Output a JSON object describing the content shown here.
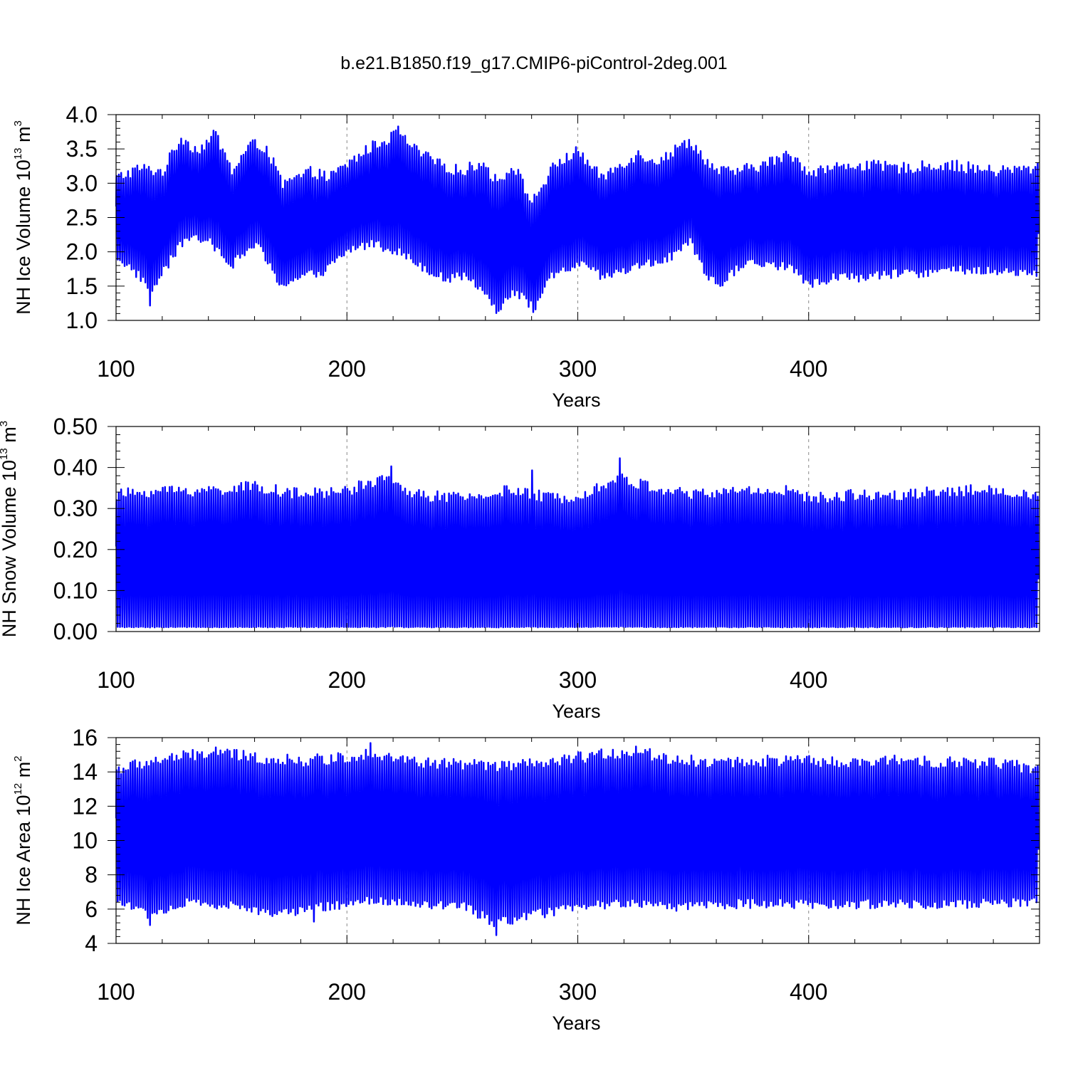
{
  "title": "b.e21.B1850.f19_g17.CMIP6-piControl-2deg.001",
  "colors": {
    "series": "#0000ff",
    "axis": "#000000",
    "grid": "#888888"
  },
  "chart_data": [
    {
      "type": "line",
      "xlabel": "Years",
      "ylabel": {
        "text": "NH Ice Volume 10",
        "sup": "13",
        "unit": " m",
        "unit_sup": "3"
      },
      "xlim": [
        100,
        500
      ],
      "ylim": [
        1.0,
        4.0
      ],
      "x_ticks": [
        100,
        200,
        300,
        400
      ],
      "x_tick_labels": [
        "100",
        "200",
        "300",
        "400"
      ],
      "y_ticks": [
        1.0,
        1.5,
        2.0,
        2.5,
        3.0,
        3.5,
        4.0
      ],
      "y_tick_labels": [
        "1.0",
        "1.5",
        "2.0",
        "2.5",
        "3.0",
        "3.5",
        "4.0"
      ],
      "grid": "vertical dashed at major x ticks",
      "seasonal_cycle": {
        "years": [
          100,
          500
        ],
        "max_envelope": [
          [
            100,
            3.1
          ],
          [
            110,
            3.25
          ],
          [
            120,
            3.2
          ],
          [
            128,
            3.7
          ],
          [
            135,
            3.5
          ],
          [
            143,
            3.75
          ],
          [
            150,
            3.2
          ],
          [
            158,
            3.6
          ],
          [
            165,
            3.55
          ],
          [
            172,
            3.0
          ],
          [
            178,
            3.1
          ],
          [
            185,
            3.2
          ],
          [
            192,
            3.1
          ],
          [
            200,
            3.3
          ],
          [
            210,
            3.55
          ],
          [
            222,
            3.75
          ],
          [
            230,
            3.5
          ],
          [
            240,
            3.3
          ],
          [
            250,
            3.2
          ],
          [
            258,
            3.35
          ],
          [
            265,
            3.05
          ],
          [
            272,
            3.3
          ],
          [
            280,
            2.75
          ],
          [
            290,
            3.3
          ],
          [
            300,
            3.5
          ],
          [
            310,
            3.1
          ],
          [
            318,
            3.3
          ],
          [
            326,
            3.45
          ],
          [
            335,
            3.35
          ],
          [
            348,
            3.65
          ],
          [
            360,
            3.2
          ],
          [
            370,
            3.2
          ],
          [
            380,
            3.3
          ],
          [
            392,
            3.45
          ],
          [
            400,
            3.2
          ],
          [
            420,
            3.3
          ],
          [
            440,
            3.25
          ],
          [
            460,
            3.3
          ],
          [
            480,
            3.2
          ],
          [
            499,
            3.25
          ]
        ],
        "min_envelope": [
          [
            100,
            1.9
          ],
          [
            110,
            1.6
          ],
          [
            115,
            1.4
          ],
          [
            120,
            1.7
          ],
          [
            130,
            2.2
          ],
          [
            140,
            2.1
          ],
          [
            150,
            1.8
          ],
          [
            160,
            2.1
          ],
          [
            170,
            1.5
          ],
          [
            180,
            1.6
          ],
          [
            190,
            1.7
          ],
          [
            200,
            2.0
          ],
          [
            210,
            2.1
          ],
          [
            220,
            2.0
          ],
          [
            230,
            1.8
          ],
          [
            240,
            1.6
          ],
          [
            250,
            1.6
          ],
          [
            258,
            1.4
          ],
          [
            265,
            1.15
          ],
          [
            272,
            1.4
          ],
          [
            280,
            1.15
          ],
          [
            288,
            1.6
          ],
          [
            300,
            1.8
          ],
          [
            310,
            1.6
          ],
          [
            320,
            1.7
          ],
          [
            330,
            1.8
          ],
          [
            340,
            1.9
          ],
          [
            348,
            2.1
          ],
          [
            355,
            1.6
          ],
          [
            362,
            1.5
          ],
          [
            370,
            1.8
          ],
          [
            380,
            1.8
          ],
          [
            390,
            1.75
          ],
          [
            400,
            1.5
          ],
          [
            410,
            1.6
          ],
          [
            420,
            1.6
          ],
          [
            440,
            1.65
          ],
          [
            460,
            1.7
          ],
          [
            480,
            1.7
          ],
          [
            499,
            1.65
          ]
        ],
        "notable_peaks": [
          [
            222,
            3.86
          ],
          [
            143,
            3.78
          ],
          [
            348,
            3.66
          ]
        ],
        "notable_troughs": [
          [
            264,
            1.07
          ],
          [
            281,
            1.13
          ],
          [
            114,
            1.18
          ]
        ]
      }
    },
    {
      "type": "line",
      "xlabel": "Years",
      "ylabel": {
        "text": "NH Snow Volume 10",
        "sup": "13",
        "unit": " m",
        "unit_sup": "3"
      },
      "xlim": [
        100,
        500
      ],
      "ylim": [
        0.0,
        0.5
      ],
      "x_ticks": [
        100,
        200,
        300,
        400
      ],
      "x_tick_labels": [
        "100",
        "200",
        "300",
        "400"
      ],
      "y_ticks": [
        0.0,
        0.1,
        0.2,
        0.3,
        0.4,
        0.5
      ],
      "y_tick_labels": [
        "0.00",
        "0.10",
        "0.20",
        "0.30",
        "0.40",
        "0.50"
      ],
      "grid": "vertical dashed at major x ticks",
      "seasonal_cycle": {
        "years": [
          100,
          500
        ],
        "max_envelope": [
          [
            100,
            0.34
          ],
          [
            120,
            0.35
          ],
          [
            140,
            0.35
          ],
          [
            160,
            0.36
          ],
          [
            180,
            0.34
          ],
          [
            200,
            0.35
          ],
          [
            215,
            0.38
          ],
          [
            230,
            0.34
          ],
          [
            250,
            0.33
          ],
          [
            270,
            0.35
          ],
          [
            290,
            0.33
          ],
          [
            300,
            0.34
          ],
          [
            318,
            0.38
          ],
          [
            330,
            0.36
          ],
          [
            350,
            0.34
          ],
          [
            370,
            0.35
          ],
          [
            390,
            0.35
          ],
          [
            400,
            0.33
          ],
          [
            420,
            0.34
          ],
          [
            440,
            0.34
          ],
          [
            460,
            0.35
          ],
          [
            480,
            0.35
          ],
          [
            499,
            0.34
          ]
        ],
        "min_envelope": [
          [
            100,
            0.005
          ],
          [
            200,
            0.005
          ],
          [
            300,
            0.005
          ],
          [
            400,
            0.005
          ],
          [
            499,
            0.005
          ]
        ],
        "notable_peaks": [
          [
            318,
            0.43
          ],
          [
            219,
            0.41
          ],
          [
            280,
            0.4
          ]
        ]
      }
    },
    {
      "type": "line",
      "xlabel": "Years",
      "ylabel": {
        "text": "NH Ice Area 10",
        "sup": "12",
        "unit": " m",
        "unit_sup": "2"
      },
      "xlim": [
        100,
        500
      ],
      "ylim": [
        4,
        16
      ],
      "x_ticks": [
        100,
        200,
        300,
        400
      ],
      "x_tick_labels": [
        "100",
        "200",
        "300",
        "400"
      ],
      "y_ticks": [
        4,
        6,
        8,
        10,
        12,
        14,
        16
      ],
      "y_tick_labels": [
        "4",
        "6",
        "8",
        "10",
        "12",
        "14",
        "16"
      ],
      "grid": "vertical dashed at major x ticks",
      "seasonal_cycle": {
        "years": [
          100,
          500
        ],
        "max_envelope": [
          [
            100,
            14.3
          ],
          [
            120,
            14.9
          ],
          [
            143,
            15.3
          ],
          [
            160,
            15.0
          ],
          [
            180,
            14.8
          ],
          [
            200,
            15.0
          ],
          [
            210,
            15.3
          ],
          [
            230,
            14.7
          ],
          [
            250,
            14.6
          ],
          [
            270,
            14.5
          ],
          [
            290,
            14.7
          ],
          [
            300,
            15.0
          ],
          [
            325,
            15.4
          ],
          [
            340,
            14.9
          ],
          [
            360,
            14.7
          ],
          [
            380,
            14.8
          ],
          [
            400,
            14.8
          ],
          [
            420,
            14.6
          ],
          [
            440,
            14.9
          ],
          [
            460,
            14.7
          ],
          [
            480,
            14.7
          ],
          [
            499,
            14.3
          ]
        ],
        "min_envelope": [
          [
            100,
            6.3
          ],
          [
            114,
            5.5
          ],
          [
            130,
            6.2
          ],
          [
            150,
            6.0
          ],
          [
            170,
            5.6
          ],
          [
            190,
            6.0
          ],
          [
            210,
            6.3
          ],
          [
            230,
            6.1
          ],
          [
            250,
            6.0
          ],
          [
            264,
            5.0
          ],
          [
            280,
            5.5
          ],
          [
            300,
            6.0
          ],
          [
            320,
            6.2
          ],
          [
            340,
            6.0
          ],
          [
            360,
            6.1
          ],
          [
            380,
            6.2
          ],
          [
            400,
            6.1
          ],
          [
            420,
            6.1
          ],
          [
            440,
            6.2
          ],
          [
            460,
            6.1
          ],
          [
            480,
            6.2
          ],
          [
            499,
            6.3
          ]
        ],
        "notable_peaks": [
          [
            210,
            15.85
          ],
          [
            325,
            15.65
          ],
          [
            143,
            15.6
          ]
        ],
        "notable_troughs": [
          [
            264,
            4.3
          ],
          [
            114,
            4.9
          ],
          [
            185,
            5.1
          ]
        ]
      }
    }
  ]
}
